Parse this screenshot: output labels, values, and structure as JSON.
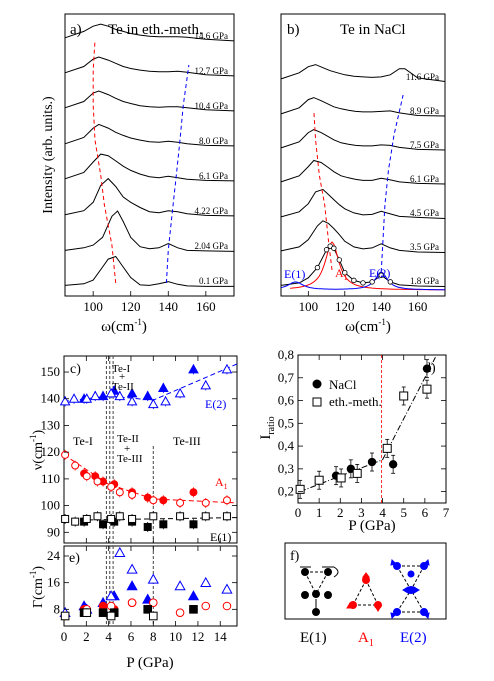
{
  "colors": {
    "black": "#000000",
    "red": "#ff0000",
    "blue": "#0000ff",
    "gray": "#444444"
  },
  "chart_data": [
    {
      "panel": "a)",
      "type": "line",
      "title": "Te in eth.-meth.",
      "xlabel": "ω(cm⁻¹)",
      "ylabel": "Intensity (arb. units.)",
      "xlim": [
        85,
        175
      ],
      "xticks": [
        100,
        120,
        140,
        160
      ],
      "series": [
        {
          "name": "0.1 GPa",
          "x": [
            85,
            95,
            100,
            105,
            108,
            112,
            116,
            120,
            125,
            130,
            135,
            140,
            145,
            150,
            160,
            175
          ],
          "y": [
            0.05,
            0.08,
            0.15,
            0.4,
            0.55,
            0.6,
            0.4,
            0.2,
            0.06,
            0.05,
            0.08,
            0.12,
            0.07,
            0.04,
            0.03,
            0.03
          ]
        },
        {
          "name": "2.04 GPa",
          "x": [
            85,
            95,
            100,
            105,
            110,
            113,
            116,
            120,
            125,
            130,
            135,
            140,
            145,
            150,
            160,
            175
          ],
          "y": [
            0.05,
            0.1,
            0.15,
            0.3,
            0.7,
            0.8,
            0.6,
            0.3,
            0.12,
            0.08,
            0.1,
            0.18,
            0.1,
            0.05,
            0.04,
            0.03
          ]
        },
        {
          "name": "4.22 GPa",
          "x": [
            85,
            95,
            100,
            104,
            108,
            112,
            116,
            120,
            125,
            130,
            135,
            140,
            145,
            150,
            160,
            175
          ],
          "y": [
            0.06,
            0.14,
            0.3,
            0.62,
            0.75,
            0.6,
            0.4,
            0.3,
            0.2,
            0.12,
            0.1,
            0.14,
            0.12,
            0.08,
            0.05,
            0.04
          ]
        },
        {
          "name": "6.1 GPa",
          "x": [
            85,
            95,
            100,
            104,
            108,
            112,
            116,
            120,
            125,
            130,
            135,
            140,
            145,
            150,
            160,
            175
          ],
          "y": [
            0.08,
            0.2,
            0.4,
            0.55,
            0.52,
            0.42,
            0.32,
            0.24,
            0.17,
            0.12,
            0.1,
            0.13,
            0.1,
            0.07,
            0.05,
            0.04
          ]
        },
        {
          "name": "8.0 GPa",
          "x": [
            85,
            95,
            100,
            103,
            108,
            112,
            116,
            120,
            125,
            130,
            135,
            140,
            145,
            150,
            160,
            175
          ],
          "y": [
            0.08,
            0.2,
            0.38,
            0.45,
            0.38,
            0.3,
            0.24,
            0.19,
            0.15,
            0.12,
            0.11,
            0.13,
            0.11,
            0.08,
            0.05,
            0.04
          ]
        },
        {
          "name": "10.4 GPa",
          "x": [
            85,
            95,
            100,
            103,
            108,
            112,
            116,
            120,
            125,
            130,
            135,
            140,
            145,
            150,
            160,
            175
          ],
          "y": [
            0.1,
            0.22,
            0.38,
            0.42,
            0.35,
            0.28,
            0.22,
            0.18,
            0.14,
            0.12,
            0.11,
            0.12,
            0.12,
            0.1,
            0.06,
            0.04
          ]
        },
        {
          "name": "12.7 GPa",
          "x": [
            85,
            95,
            100,
            103,
            108,
            112,
            116,
            120,
            125,
            130,
            135,
            140,
            145,
            150,
            160,
            175
          ],
          "y": [
            0.1,
            0.22,
            0.36,
            0.4,
            0.34,
            0.28,
            0.22,
            0.18,
            0.15,
            0.13,
            0.12,
            0.12,
            0.13,
            0.11,
            0.06,
            0.04
          ]
        },
        {
          "name": "14.6 GPa",
          "x": [
            85,
            95,
            100,
            104,
            108,
            112,
            116,
            120,
            125,
            130,
            135,
            140,
            145,
            150,
            160,
            175
          ],
          "y": [
            0.1,
            0.22,
            0.32,
            0.36,
            0.32,
            0.26,
            0.22,
            0.18,
            0.15,
            0.13,
            0.12,
            0.12,
            0.12,
            0.11,
            0.07,
            0.04
          ]
        }
      ]
    },
    {
      "panel": "b)",
      "type": "line",
      "title": "Te in NaCl",
      "xlabel": "ω(cm⁻¹)",
      "xlim": [
        85,
        175
      ],
      "xticks": [
        100,
        120,
        140,
        160
      ],
      "annotations": [
        "E(1)",
        "A₁",
        "E(2)"
      ],
      "series": [
        {
          "name": "1.8 GPa",
          "x": [
            85,
            95,
            100,
            105,
            110,
            112,
            114,
            117,
            120,
            125,
            130,
            135,
            140,
            145,
            150,
            160,
            175
          ],
          "y": [
            0.05,
            0.1,
            0.2,
            0.4,
            0.75,
            0.82,
            0.78,
            0.55,
            0.3,
            0.15,
            0.1,
            0.12,
            0.25,
            0.12,
            0.06,
            0.04,
            0.03
          ]
        },
        {
          "name": "3.5 GPa",
          "x": [
            85,
            95,
            100,
            105,
            108,
            111,
            114,
            117,
            120,
            125,
            130,
            135,
            140,
            145,
            150,
            160,
            175
          ],
          "y": [
            0.06,
            0.14,
            0.28,
            0.55,
            0.65,
            0.6,
            0.5,
            0.38,
            0.25,
            0.14,
            0.1,
            0.12,
            0.2,
            0.12,
            0.07,
            0.04,
            0.03
          ]
        },
        {
          "name": "4.5 GPa",
          "x": [
            85,
            95,
            100,
            104,
            108,
            111,
            114,
            117,
            120,
            125,
            130,
            135,
            140,
            145,
            150,
            160,
            175
          ],
          "y": [
            0.06,
            0.16,
            0.32,
            0.55,
            0.6,
            0.5,
            0.4,
            0.3,
            0.22,
            0.14,
            0.1,
            0.11,
            0.17,
            0.12,
            0.07,
            0.05,
            0.03
          ]
        },
        {
          "name": "6.1 GPa",
          "x": [
            85,
            95,
            100,
            103,
            107,
            111,
            114,
            118,
            122,
            126,
            130,
            135,
            140,
            145,
            150,
            160,
            175
          ],
          "y": [
            0.08,
            0.2,
            0.38,
            0.5,
            0.46,
            0.36,
            0.28,
            0.2,
            0.16,
            0.13,
            0.11,
            0.11,
            0.15,
            0.12,
            0.08,
            0.05,
            0.04
          ]
        },
        {
          "name": "7.5 GPa",
          "x": [
            85,
            95,
            100,
            103,
            107,
            111,
            114,
            118,
            122,
            126,
            130,
            135,
            140,
            145,
            150,
            160,
            175
          ],
          "y": [
            0.08,
            0.2,
            0.38,
            0.44,
            0.38,
            0.3,
            0.24,
            0.18,
            0.15,
            0.13,
            0.12,
            0.12,
            0.14,
            0.13,
            0.09,
            0.05,
            0.04
          ]
        },
        {
          "name": "8.9 GPa",
          "x": [
            85,
            95,
            100,
            103,
            107,
            111,
            114,
            118,
            122,
            126,
            130,
            135,
            140,
            145,
            150,
            160,
            175
          ],
          "y": [
            0.08,
            0.2,
            0.36,
            0.4,
            0.34,
            0.27,
            0.22,
            0.18,
            0.15,
            0.13,
            0.12,
            0.12,
            0.13,
            0.14,
            0.1,
            0.05,
            0.04
          ]
        },
        {
          "name": "11.6 GPa",
          "x": [
            85,
            95,
            100,
            104,
            108,
            112,
            116,
            120,
            125,
            130,
            135,
            140,
            145,
            150,
            153,
            160,
            175
          ],
          "y": [
            0.1,
            0.22,
            0.34,
            0.38,
            0.32,
            0.26,
            0.22,
            0.18,
            0.15,
            0.14,
            0.13,
            0.14,
            0.18,
            0.3,
            0.3,
            0.12,
            0.05
          ]
        }
      ]
    },
    {
      "panel": "c)",
      "type": "scatter",
      "xlim": [
        0,
        15.5
      ],
      "ylim": [
        86,
        156
      ],
      "yticks": [
        90,
        100,
        110,
        120,
        130,
        140,
        150
      ],
      "ylabel": "ν(cm⁻¹)",
      "phase_labels": [
        "Te-I",
        "Te-I + Te-II",
        "Te-II + Te-III",
        "Te-III"
      ],
      "mode_labels": [
        "E(2)",
        "A₁",
        "E(1)"
      ],
      "series": [
        {
          "name": "E(2) NaCl",
          "x": [
            1.8,
            3.5,
            4.5,
            6.1,
            7.5,
            8.9,
            11.6
          ],
          "y": [
            140,
            141,
            143,
            142,
            141,
            144,
            151
          ]
        },
        {
          "name": "E(2) eth.-meth.",
          "x": [
            0.1,
            0.9,
            2.04,
            2.8,
            4.22,
            5.0,
            6.1,
            8.0,
            9.1,
            10.4,
            12.7,
            14.6
          ],
          "y": [
            139,
            140,
            140,
            141,
            142,
            141,
            139,
            138,
            139,
            142,
            145,
            151
          ]
        },
        {
          "name": "A₁ NaCl",
          "x": [
            1.8,
            2.8,
            3.5,
            4.5,
            6.1,
            7.5,
            8.9,
            11.6
          ],
          "y": [
            112,
            111,
            109,
            108,
            105,
            103,
            102,
            105
          ]
        },
        {
          "name": "A₁ eth.-meth.",
          "x": [
            0.1,
            1.0,
            2.04,
            3.0,
            4.22,
            5.0,
            6.1,
            8.0,
            10.4,
            12.7,
            14.6
          ],
          "y": [
            119,
            115,
            111,
            109,
            107,
            105,
            104,
            102,
            101,
            101,
            102
          ]
        },
        {
          "name": "E(1) NaCl",
          "x": [
            1.8,
            3.5,
            4.5,
            6.1,
            7.5,
            8.9,
            11.6
          ],
          "y": [
            94,
            93,
            94,
            94,
            92,
            93,
            93
          ]
        },
        {
          "name": "E(1) eth.-meth.",
          "x": [
            0.1,
            1.0,
            2.04,
            3.0,
            4.22,
            5.0,
            6.1,
            8.0,
            10.4,
            12.7,
            14.6
          ],
          "y": [
            95,
            94,
            95,
            96,
            95,
            96,
            95,
            96,
            96,
            96,
            96
          ]
        }
      ]
    },
    {
      "panel": "e)",
      "type": "scatter",
      "xlim": [
        0,
        15.5
      ],
      "ylim": [
        3,
        27
      ],
      "xticks": [
        0,
        2,
        4,
        6,
        8,
        10,
        12,
        14
      ],
      "yticks": [
        8,
        16,
        24
      ],
      "xlabel": "P (GPa)",
      "ylabel": "Γ(cm⁻¹)",
      "series": [
        {
          "name": "E(2) NaCl",
          "x": [
            1.8,
            3.5,
            4.5,
            6.1,
            7.5,
            11.6
          ],
          "y": [
            9,
            10,
            12,
            15,
            11,
            12
          ]
        },
        {
          "name": "E(2) eth.-meth.",
          "x": [
            0.1,
            2.04,
            4.22,
            5.0,
            6.1,
            8.0,
            10.4,
            12.7,
            14.6
          ],
          "y": [
            7,
            8,
            12,
            25,
            20,
            17,
            15,
            16,
            14
          ]
        },
        {
          "name": "A₁ NaCl",
          "x": [
            1.8,
            3.5,
            4.5,
            6.1,
            7.5,
            11.6
          ],
          "y": [
            8,
            9,
            8,
            10,
            8,
            8
          ]
        },
        {
          "name": "A₁ eth.-meth.",
          "x": [
            0.1,
            2.04,
            4.22,
            6.1,
            8.0,
            10.4,
            12.7,
            14.6
          ],
          "y": [
            6,
            8,
            9,
            10,
            10,
            7,
            9,
            9
          ]
        },
        {
          "name": "E(1) NaCl",
          "x": [
            1.8,
            3.5,
            4.5,
            7.5,
            11.6
          ],
          "y": [
            7,
            7,
            7,
            8,
            8
          ]
        },
        {
          "name": "E(1) eth.-meth.",
          "x": [
            0.1,
            2.04,
            4.22,
            8.0
          ],
          "y": [
            6,
            7,
            6,
            6
          ]
        }
      ]
    },
    {
      "panel": "d)",
      "type": "scatter",
      "xlim": [
        0,
        7
      ],
      "ylim": [
        0.15,
        0.8
      ],
      "xticks": [
        0,
        1,
        2,
        3,
        4,
        5,
        6,
        7
      ],
      "yticks": [
        0.2,
        0.3,
        0.4,
        0.5,
        0.6,
        0.7,
        0.8
      ],
      "xlabel": "P (GPa)",
      "ylabel": "I_ratio",
      "legend": "top-left",
      "series": [
        {
          "name": "NaCl",
          "x": [
            1.8,
            2.5,
            3.5,
            4.5,
            6.1
          ],
          "y": [
            0.27,
            0.3,
            0.33,
            0.32,
            0.74
          ]
        },
        {
          "name": "eth.-meth.",
          "x": [
            0.1,
            1.0,
            2.04,
            2.8,
            4.22,
            5.0,
            6.1
          ],
          "y": [
            0.21,
            0.25,
            0.26,
            0.28,
            0.39,
            0.62,
            0.65
          ]
        }
      ]
    }
  ],
  "text": {
    "panel_a": "a)",
    "title_a": "Te in eth.-meth.",
    "panel_b": "b)",
    "title_b": "Te in NaCl",
    "ylabel_top": "Intensity (arb. units.)",
    "xlabel_omega": "ω(cm",
    "xlabel_omega_sup": "-1",
    "xlabel_omega_end": ")",
    "pressures_a": [
      "0.1 GPa",
      "2.04 GPa",
      "4.22 GPa",
      "6.1 GPa",
      "8.0 GPa",
      "10.4 GPa",
      "12.7 GPa",
      "14.6 GPa"
    ],
    "pressures_b": [
      "1.8 GPa",
      "3.5 GPa",
      "4.5 GPa",
      "6.1 GPa",
      "7.5 GPa",
      "8.9 GPa",
      "11.6 GPa"
    ],
    "label_E1": "E(1)",
    "label_A1": "A",
    "label_A1_sub": "1",
    "label_E2": "E(2)",
    "panel_c": "c)",
    "panel_d": "d)",
    "panel_e": "e)",
    "panel_f": "f)",
    "phase_TeI": "Te-I",
    "phase_TeI_b": "Te-I",
    "phase_TeI_plus": "+",
    "phase_TeII_b": "Te-II",
    "phase_TeII": "Te-II",
    "phase_TeII_plus": "+",
    "phase_TeIII_b": "Te-III",
    "phase_TeIII": "Te-III",
    "ylabel_nu": "ν(cm",
    "ylabel_gamma": "Γ(cm",
    "xlabel_P": "P (GPa)",
    "ylabel_I": "I",
    "ylabel_I_sub": "ratio",
    "legend_NaCl": "NaCl",
    "legend_eth": "eth.-meth.",
    "f_E1": "E(1)",
    "f_A1": "A",
    "f_A1_sub": "1",
    "f_E2": "E(2)"
  }
}
